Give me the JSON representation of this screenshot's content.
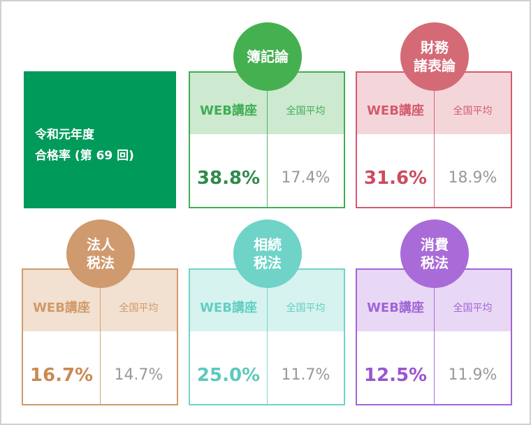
{
  "intro": {
    "line1": "令和元年度",
    "line2": "合格率 (第 69 回)"
  },
  "cards": [
    {
      "id": "boki",
      "subject_line1": "簿記論",
      "subject_line2": "",
      "web_label": "WEB講座",
      "avg_label": "全国平均",
      "web_rate": "38.8%",
      "avg_rate": "17.4%",
      "color": "#3fae55"
    },
    {
      "id": "zaimu",
      "subject_line1": "財務",
      "subject_line2": "諸表論",
      "web_label": "WEB講座",
      "avg_label": "全国平均",
      "web_rate": "31.6%",
      "avg_rate": "18.9%",
      "color": "#d45a6e"
    },
    {
      "id": "hojin",
      "subject_line1": "法人",
      "subject_line2": "税法",
      "web_label": "WEB講座",
      "avg_label": "全国平均",
      "web_rate": "16.7%",
      "avg_rate": "14.7%",
      "color": "#cf9a6a"
    },
    {
      "id": "sozoku",
      "subject_line1": "相続",
      "subject_line2": "税法",
      "web_label": "WEB講座",
      "avg_label": "全国平均",
      "web_rate": "25.0%",
      "avg_rate": "11.7%",
      "color": "#6fd3c8"
    },
    {
      "id": "shohi",
      "subject_line1": "消費",
      "subject_line2": "税法",
      "web_label": "WEB講座",
      "avg_label": "全国平均",
      "web_rate": "12.5%",
      "avg_rate": "11.9%",
      "color": "#a065d6"
    }
  ]
}
